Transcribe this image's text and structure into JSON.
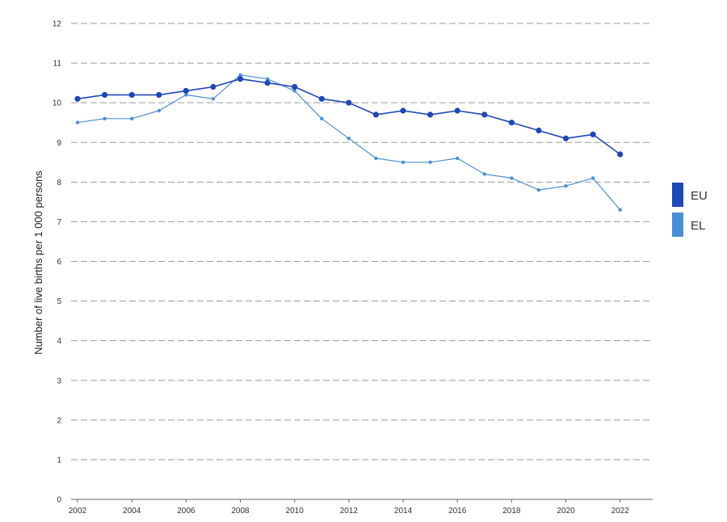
{
  "chart_data": {
    "type": "line",
    "ylabel": "Number of live births per 1 000 persons",
    "xlabel": "",
    "ylim": [
      0,
      12
    ],
    "xlim": [
      2002,
      2023.2
    ],
    "yticks": [
      0,
      1,
      2,
      3,
      4,
      5,
      6,
      7,
      8,
      9,
      10,
      11,
      12
    ],
    "xticks": [
      2002,
      2004,
      2006,
      2008,
      2010,
      2012,
      2014,
      2016,
      2018,
      2020,
      2022
    ],
    "grid": true,
    "legend_position": "right",
    "x": [
      2002,
      2003,
      2004,
      2005,
      2006,
      2007,
      2008,
      2009,
      2010,
      2011,
      2012,
      2013,
      2014,
      2015,
      2016,
      2017,
      2018,
      2019,
      2020,
      2021,
      2022
    ],
    "series": [
      {
        "name": "EU",
        "color": "#1f47b5",
        "values": [
          10.1,
          10.2,
          10.2,
          10.2,
          10.3,
          10.4,
          10.6,
          10.5,
          10.4,
          10.1,
          10.0,
          9.7,
          9.8,
          9.7,
          9.8,
          9.7,
          9.5,
          9.3,
          9.1,
          9.2,
          8.7
        ]
      },
      {
        "name": "EL",
        "color": "#4a8fd6",
        "values": [
          9.5,
          9.6,
          9.6,
          9.8,
          10.2,
          10.1,
          10.7,
          10.6,
          10.3,
          9.6,
          9.1,
          8.6,
          8.5,
          8.5,
          8.6,
          8.2,
          8.1,
          7.8,
          7.9,
          8.1,
          7.3
        ]
      }
    ]
  }
}
